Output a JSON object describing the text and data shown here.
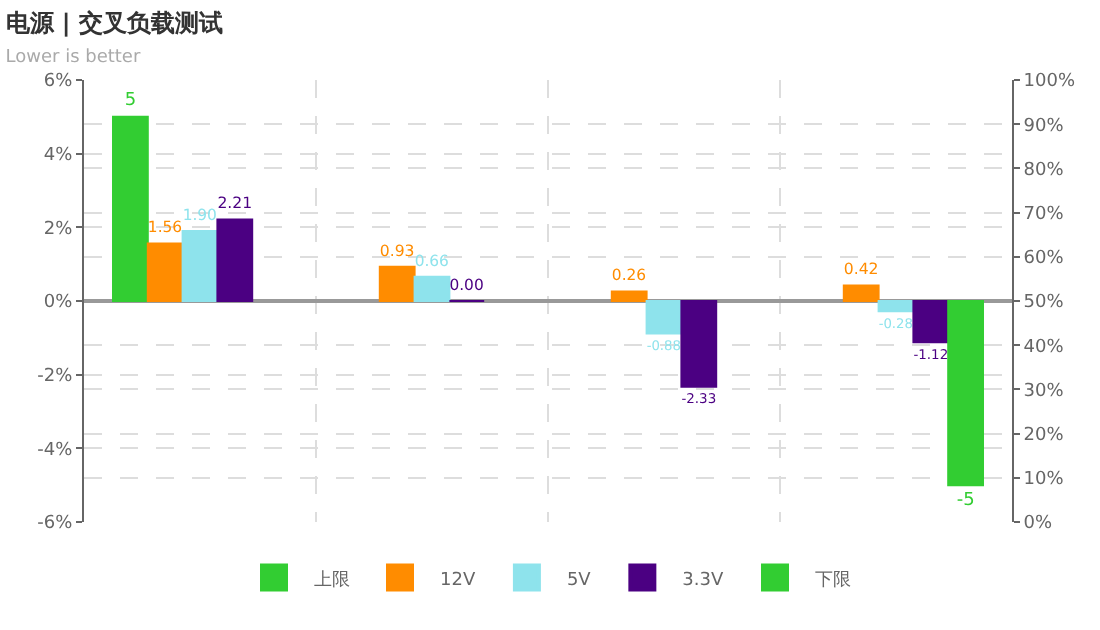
{
  "chart_data": {
    "type": "bar",
    "title": "电源 | 交叉负载测试",
    "subtitle": "Lower is better",
    "categories": [
      null,
      null,
      null,
      null
    ],
    "series": [
      {
        "name": "上限",
        "color": "#32cd32",
        "values": [
          5,
          null,
          null,
          null
        ],
        "value_labels": [
          "5",
          null,
          null,
          null
        ]
      },
      {
        "name": "12V",
        "color": "#ff8c00",
        "values": [
          1.56,
          0.93,
          0.26,
          0.42
        ],
        "value_labels": [
          "1.56",
          "0.93",
          "0.26",
          "0.42"
        ]
      },
      {
        "name": "5V",
        "color": "#8ee3ec",
        "values": [
          1.9,
          0.66,
          -0.88,
          -0.28
        ],
        "value_labels": [
          "1.90",
          "0.66",
          "-0.88",
          "-0.28"
        ]
      },
      {
        "name": "3.3V",
        "color": "#4b0082",
        "values": [
          2.21,
          0.0,
          -2.33,
          -1.12
        ],
        "value_labels": [
          "2.21",
          "0.00",
          "-2.33",
          "-1.12"
        ]
      },
      {
        "name": "下限",
        "color": "#32cd32",
        "values": [
          null,
          null,
          null,
          -5
        ],
        "value_labels": [
          null,
          null,
          null,
          "-5"
        ]
      }
    ],
    "ylim": [
      -6,
      6
    ],
    "yticks": [
      {
        "value": -6,
        "label": "-6%"
      },
      {
        "value": -4,
        "label": "-4%"
      },
      {
        "value": -2,
        "label": "-2%"
      },
      {
        "value": 0,
        "label": "0%"
      },
      {
        "value": 2,
        "label": "2%"
      },
      {
        "value": 4,
        "label": "4%"
      },
      {
        "value": 6,
        "label": "6%"
      }
    ],
    "y2lim": [
      0,
      100
    ],
    "y2ticks": [
      {
        "value": 0,
        "label": "0%"
      },
      {
        "value": 10,
        "label": "10%"
      },
      {
        "value": 20,
        "label": "20%"
      },
      {
        "value": 30,
        "label": "30%"
      },
      {
        "value": 40,
        "label": "40%"
      },
      {
        "value": 50,
        "label": "50%"
      },
      {
        "value": 60,
        "label": "60%"
      },
      {
        "value": 70,
        "label": "70%"
      },
      {
        "value": 80,
        "label": "80%"
      },
      {
        "value": 90,
        "label": "90%"
      },
      {
        "value": 100,
        "label": "100%"
      }
    ],
    "grid": true,
    "legend": "bottom"
  }
}
